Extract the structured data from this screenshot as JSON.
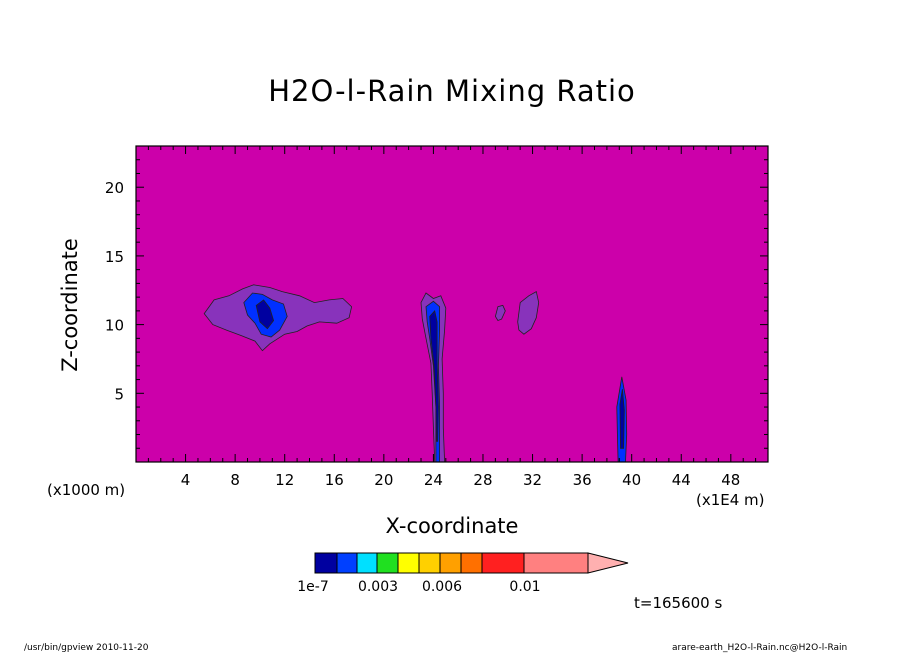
{
  "chart_data": {
    "type": "heatmap",
    "title": "H2O-l-Rain Mixing Ratio",
    "xlabel": "X-coordinate",
    "ylabel": "Z-coordinate",
    "x_unit_label": "(x1E4 m)",
    "y_unit_label": "(x1000 m)",
    "xlim": [
      0,
      51
    ],
    "ylim": [
      0,
      23
    ],
    "x_ticks": [
      4,
      8,
      12,
      16,
      20,
      24,
      28,
      32,
      36,
      40,
      44,
      48
    ],
    "y_ticks": [
      5,
      10,
      15,
      20
    ],
    "background_color": "#cc00aa",
    "colorbar": {
      "levels": [
        "1e-7",
        "0.003",
        "0.006",
        "0.01"
      ],
      "colors": [
        "#0000a0",
        "#0040ff",
        "#00e0ff",
        "#20e020",
        "#ffff00",
        "#ffd000",
        "#ffa000",
        "#ff7000",
        "#ff2020",
        "#ff8080",
        "#ffb0b0"
      ],
      "extend": "max"
    },
    "features": [
      {
        "name": "cloud-cluster-8-16",
        "x_range": [
          5.5,
          17.5
        ],
        "z_range": [
          8.2,
          13.0
        ],
        "value_class": "low"
      },
      {
        "name": "rain-shaft-24",
        "x_range": [
          23,
          25
        ],
        "z_range": [
          0,
          12.3
        ],
        "value_class": "core"
      },
      {
        "name": "small-cell-29",
        "x_range": [
          29,
          29.8
        ],
        "z_range": [
          10.3,
          11.4
        ],
        "value_class": "low"
      },
      {
        "name": "cell-31",
        "x_range": [
          30.8,
          32.5
        ],
        "z_range": [
          9.3,
          12.4
        ],
        "value_class": "low"
      },
      {
        "name": "rain-shaft-39",
        "x_range": [
          38.8,
          39.6
        ],
        "z_range": [
          0,
          6.2
        ],
        "value_class": "core"
      }
    ]
  },
  "annotations": {
    "time": "t=165600 s"
  },
  "footer": {
    "left": "/usr/bin/gpview   2010-11-20",
    "right": "arare-earth_H2O-l-Rain.nc@H2O-l-Rain"
  }
}
